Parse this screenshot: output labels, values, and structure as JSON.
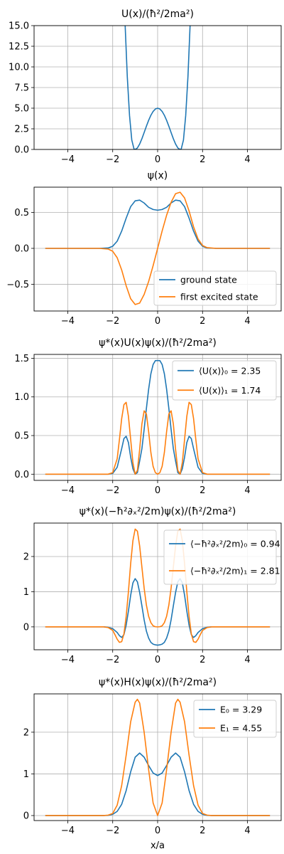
{
  "figure": {
    "xlabel": "x/a"
  },
  "colors": {
    "ground": "#1f77b4",
    "excited": "#ff7f0e",
    "grid": "#b0b0b0"
  },
  "chart_data": [
    {
      "type": "line",
      "title": "U(x)/(ħ²/2ma²)",
      "xlim": [
        -5.5,
        5.5
      ],
      "ylim": [
        0,
        15
      ],
      "xticks": [
        -4,
        -2,
        0,
        2,
        4
      ],
      "yticks": [
        0,
        2.5,
        5,
        7.5,
        10,
        12.5,
        15
      ],
      "ytick_labels": [
        "0.0",
        "2.5",
        "5.0",
        "7.5",
        "10.0",
        "12.5",
        "15.0"
      ],
      "grid": true,
      "legend": null,
      "series": [
        {
          "color": "ground",
          "x": [
            -1.45,
            -1.35,
            -1.25,
            -1.15,
            -1.05,
            -1.0,
            -0.9,
            -0.8,
            -0.7,
            -0.6,
            -0.5,
            -0.4,
            -0.3,
            -0.2,
            -0.1,
            0,
            0.1,
            0.2,
            0.3,
            0.4,
            0.5,
            0.6,
            0.7,
            0.8,
            0.9,
            1.0,
            1.05,
            1.15,
            1.25,
            1.35,
            1.45
          ],
          "y": [
            15.3,
            8.8,
            4.1,
            1.14,
            0.05,
            0,
            0.18,
            0.65,
            1.3,
            2.05,
            2.81,
            3.53,
            4.14,
            4.61,
            4.9,
            5.0,
            4.9,
            4.61,
            4.14,
            3.53,
            2.81,
            2.05,
            1.3,
            0.65,
            0.18,
            0,
            0.05,
            1.14,
            4.1,
            8.8,
            15.3
          ]
        }
      ]
    },
    {
      "type": "line",
      "title": "ψ(x)",
      "xlim": [
        -5.5,
        5.5
      ],
      "ylim": [
        -0.87,
        0.85
      ],
      "xticks": [
        -4,
        -2,
        0,
        2,
        4
      ],
      "yticks": [
        -0.5,
        0,
        0.5
      ],
      "ytick_labels": [
        "−0.5",
        "0.0",
        "0.5"
      ],
      "grid": true,
      "legend": "lower-right",
      "series": [
        {
          "name": "ground state",
          "color": "ground",
          "x": [
            -5,
            -2.6,
            -2.2,
            -2,
            -1.8,
            -1.6,
            -1.4,
            -1.2,
            -1.0,
            -0.8,
            -0.6,
            -0.4,
            -0.2,
            0,
            0.2,
            0.4,
            0.6,
            0.8,
            1.0,
            1.2,
            1.4,
            1.6,
            1.8,
            2,
            2.2,
            2.6,
            5
          ],
          "y": [
            0,
            0,
            0.005,
            0.03,
            0.1,
            0.24,
            0.42,
            0.58,
            0.66,
            0.67,
            0.63,
            0.57,
            0.54,
            0.53,
            0.54,
            0.57,
            0.63,
            0.67,
            0.66,
            0.58,
            0.42,
            0.24,
            0.1,
            0.03,
            0.005,
            0,
            0
          ]
        },
        {
          "name": "first excited state",
          "color": "excited",
          "x": [
            -5,
            -2.6,
            -2.2,
            -2,
            -1.8,
            -1.6,
            -1.4,
            -1.2,
            -1.0,
            -0.8,
            -0.6,
            -0.4,
            -0.2,
            0,
            0.2,
            0.4,
            0.6,
            0.8,
            1.0,
            1.2,
            1.4,
            1.6,
            1.8,
            2,
            2.2,
            2.6,
            5
          ],
          "y": [
            0,
            0,
            -0.01,
            -0.04,
            -0.13,
            -0.3,
            -0.52,
            -0.7,
            -0.78,
            -0.76,
            -0.64,
            -0.46,
            -0.24,
            0,
            0.24,
            0.46,
            0.64,
            0.76,
            0.78,
            0.7,
            0.52,
            0.3,
            0.13,
            0.04,
            0.01,
            0,
            0
          ]
        }
      ]
    },
    {
      "type": "line",
      "title": "ψ*(x)U(x)ψ(x)/(ħ²/2ma²)",
      "xlim": [
        -5.5,
        5.5
      ],
      "ylim": [
        -0.08,
        1.55
      ],
      "xticks": [
        -4,
        -2,
        0,
        2,
        4
      ],
      "yticks": [
        0,
        0.5,
        1,
        1.5
      ],
      "ytick_labels": [
        "0.0",
        "0.5",
        "1.0",
        "1.5"
      ],
      "grid": true,
      "legend": "top-right",
      "series": [
        {
          "name": "⟨U(x)⟩₀ = 2.35",
          "color": "ground",
          "x": [
            -5,
            -2.2,
            -2,
            -1.8,
            -1.6,
            -1.5,
            -1.4,
            -1.3,
            -1.2,
            -1.1,
            -1.0,
            -0.9,
            -0.8,
            -0.7,
            -0.6,
            -0.5,
            -0.4,
            -0.3,
            -0.2,
            -0.1,
            0,
            0.1,
            0.2,
            0.3,
            0.4,
            0.5,
            0.6,
            0.7,
            0.8,
            0.9,
            1.0,
            1.1,
            1.2,
            1.3,
            1.4,
            1.5,
            1.6,
            1.8,
            2,
            2.2,
            5
          ],
          "y": [
            0,
            0,
            0.01,
            0.09,
            0.33,
            0.46,
            0.49,
            0.41,
            0.22,
            0.07,
            0,
            0.02,
            0.17,
            0.33,
            0.58,
            0.85,
            1.1,
            1.3,
            1.42,
            1.47,
            1.47,
            1.47,
            1.42,
            1.3,
            1.1,
            0.85,
            0.58,
            0.33,
            0.17,
            0.02,
            0,
            0.07,
            0.22,
            0.41,
            0.49,
            0.46,
            0.33,
            0.09,
            0.01,
            0,
            0
          ]
        },
        {
          "name": "⟨U(x)⟩₁ = 1.74",
          "color": "excited",
          "x": [
            -5,
            -2.2,
            -2,
            -1.8,
            -1.7,
            -1.6,
            -1.5,
            -1.4,
            -1.3,
            -1.2,
            -1.1,
            -1.0,
            -0.9,
            -0.8,
            -0.7,
            -0.6,
            -0.5,
            -0.4,
            -0.3,
            -0.2,
            -0.1,
            0,
            0.1,
            0.2,
            0.3,
            0.4,
            0.5,
            0.6,
            0.7,
            0.8,
            0.9,
            1.0,
            1.1,
            1.2,
            1.3,
            1.4,
            1.5,
            1.6,
            1.7,
            1.8,
            2,
            2.2,
            5
          ],
          "y": [
            0,
            0,
            0.02,
            0.2,
            0.45,
            0.72,
            0.9,
            0.93,
            0.75,
            0.45,
            0.15,
            0,
            0.05,
            0.32,
            0.65,
            0.82,
            0.78,
            0.55,
            0.28,
            0.1,
            0.02,
            0,
            0.02,
            0.1,
            0.28,
            0.55,
            0.78,
            0.82,
            0.65,
            0.32,
            0.05,
            0,
            0.15,
            0.45,
            0.75,
            0.93,
            0.9,
            0.72,
            0.45,
            0.2,
            0.02,
            0,
            0
          ]
        }
      ]
    },
    {
      "type": "line",
      "title": "ψ*(x)(−ħ²∂ₓ²/2m)ψ(x)/(ħ²/2ma²)",
      "xlim": [
        -5.5,
        5.5
      ],
      "ylim": [
        -0.65,
        2.95
      ],
      "xticks": [
        -4,
        -2,
        0,
        2,
        4
      ],
      "yticks": [
        0,
        1,
        2
      ],
      "ytick_labels": [
        "0",
        "1",
        "2"
      ],
      "grid": true,
      "legend": "top-right",
      "series": [
        {
          "name": "⟨−ħ²∂ₓ²/2m⟩₀ = 0.94",
          "color": "ground",
          "x": [
            -5,
            -2.4,
            -2.2,
            -2,
            -1.8,
            -1.7,
            -1.6,
            -1.5,
            -1.4,
            -1.3,
            -1.2,
            -1.1,
            -1.0,
            -0.9,
            -0.8,
            -0.7,
            -0.6,
            -0.5,
            -0.4,
            -0.3,
            -0.2,
            -0.1,
            0,
            0.1,
            0.2,
            0.3,
            0.4,
            0.5,
            0.6,
            0.7,
            0.8,
            0.9,
            1.0,
            1.1,
            1.2,
            1.3,
            1.4,
            1.5,
            1.6,
            1.7,
            1.8,
            2,
            2.2,
            2.4,
            5
          ],
          "y": [
            0,
            0,
            -0.01,
            -0.05,
            -0.16,
            -0.25,
            -0.3,
            -0.22,
            0.05,
            0.45,
            0.9,
            1.25,
            1.37,
            1.28,
            0.98,
            0.6,
            0.2,
            -0.12,
            -0.32,
            -0.44,
            -0.49,
            -0.51,
            -0.52,
            -0.51,
            -0.49,
            -0.44,
            -0.32,
            -0.12,
            0.2,
            0.6,
            0.98,
            1.28,
            1.37,
            1.25,
            0.9,
            0.45,
            0.05,
            -0.22,
            -0.3,
            -0.25,
            -0.16,
            -0.05,
            -0.01,
            0,
            0
          ]
        },
        {
          "name": "⟨−ħ²∂ₓ²/2m⟩₁ = 2.81",
          "color": "excited",
          "x": [
            -5,
            -2.4,
            -2.2,
            -2,
            -1.9,
            -1.8,
            -1.7,
            -1.6,
            -1.5,
            -1.4,
            -1.3,
            -1.2,
            -1.1,
            -1.0,
            -0.9,
            -0.8,
            -0.7,
            -0.6,
            -0.5,
            -0.4,
            -0.3,
            -0.2,
            -0.1,
            0,
            0.1,
            0.2,
            0.3,
            0.4,
            0.5,
            0.6,
            0.7,
            0.8,
            0.9,
            1.0,
            1.1,
            1.2,
            1.3,
            1.4,
            1.5,
            1.6,
            1.7,
            1.8,
            1.9,
            2,
            2.2,
            2.4,
            5
          ],
          "y": [
            0,
            0,
            -0.02,
            -0.1,
            -0.22,
            -0.35,
            -0.44,
            -0.42,
            -0.2,
            0.3,
            1.0,
            1.8,
            2.45,
            2.78,
            2.72,
            2.3,
            1.7,
            1.1,
            0.62,
            0.3,
            0.12,
            0.03,
            0.005,
            0,
            0.005,
            0.03,
            0.12,
            0.3,
            0.62,
            1.1,
            1.7,
            2.3,
            2.72,
            2.78,
            2.45,
            1.8,
            1.0,
            0.3,
            -0.2,
            -0.42,
            -0.44,
            -0.35,
            -0.22,
            -0.1,
            -0.02,
            0,
            0
          ]
        }
      ]
    },
    {
      "type": "line",
      "title": "ψ*(x)H(x)ψ(x)/(ħ²/2ma²)",
      "xlim": [
        -5.5,
        5.5
      ],
      "ylim": [
        -0.12,
        2.92
      ],
      "xticks": [
        -4,
        -2,
        0,
        2,
        4
      ],
      "yticks": [
        0,
        1,
        2
      ],
      "ytick_labels": [
        "0",
        "1",
        "2"
      ],
      "grid": true,
      "legend": "top-right",
      "series": [
        {
          "name": "E₀ = 3.29",
          "color": "ground",
          "x": [
            -5,
            -2.4,
            -2.2,
            -2,
            -1.8,
            -1.6,
            -1.4,
            -1.2,
            -1.0,
            -0.8,
            -0.6,
            -0.4,
            -0.2,
            0,
            0.2,
            0.4,
            0.6,
            0.8,
            1.0,
            1.2,
            1.4,
            1.6,
            1.8,
            2,
            2.2,
            2.4,
            5
          ],
          "y": [
            0,
            0,
            0.005,
            0.03,
            0.1,
            0.27,
            0.6,
            1.05,
            1.4,
            1.5,
            1.4,
            1.2,
            1.02,
            0.96,
            1.02,
            1.2,
            1.4,
            1.5,
            1.4,
            1.05,
            0.6,
            0.27,
            0.1,
            0.03,
            0.005,
            0,
            0
          ]
        },
        {
          "name": "E₁ = 4.55",
          "color": "excited",
          "x": [
            -5,
            -2.4,
            -2.2,
            -2,
            -1.8,
            -1.6,
            -1.4,
            -1.2,
            -1.0,
            -0.9,
            -0.8,
            -0.6,
            -0.4,
            -0.2,
            0,
            0.2,
            0.4,
            0.6,
            0.8,
            0.9,
            1.0,
            1.2,
            1.4,
            1.6,
            1.8,
            2,
            2.2,
            2.4,
            5
          ],
          "y": [
            0,
            0,
            0.01,
            0.05,
            0.25,
            0.72,
            1.45,
            2.25,
            2.72,
            2.79,
            2.7,
            2.0,
            1.1,
            0.3,
            0,
            0.3,
            1.1,
            2.0,
            2.7,
            2.79,
            2.72,
            2.25,
            1.45,
            0.72,
            0.25,
            0.05,
            0.01,
            0,
            0
          ]
        }
      ]
    }
  ]
}
